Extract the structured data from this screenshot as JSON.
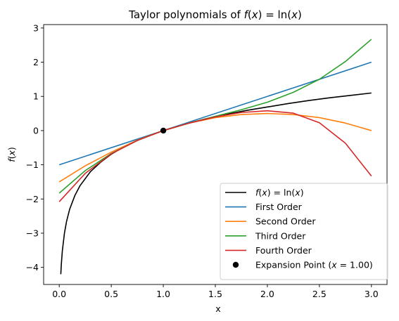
{
  "chart_data": {
    "type": "line",
    "title": "Taylor polynomials of f(x) = ln(x)",
    "xlabel": "x",
    "ylabel": "f(x)",
    "xlim": [
      -0.15,
      3.15
    ],
    "ylim": [
      -4.5,
      3.1
    ],
    "xticks": [
      0.0,
      0.5,
      1.0,
      1.5,
      2.0,
      2.5,
      3.0
    ],
    "xtick_labels": [
      "0.0",
      "0.5",
      "1.0",
      "1.5",
      "2.0",
      "2.5",
      "3.0"
    ],
    "yticks": [
      -4,
      -3,
      -2,
      -1,
      0,
      1,
      2,
      3
    ],
    "ytick_labels": [
      "−4",
      "−3",
      "−2",
      "−1",
      "0",
      "1",
      "2",
      "3"
    ],
    "legend_position": "lower right",
    "series": [
      {
        "name": "f(x) = ln(x)",
        "color": "#000000",
        "x": [
          0.015,
          0.02,
          0.03,
          0.05,
          0.07,
          0.1,
          0.15,
          0.2,
          0.3,
          0.4,
          0.5,
          0.6,
          0.7,
          0.8,
          0.9,
          1.0,
          1.2,
          1.4,
          1.6,
          1.8,
          2.0,
          2.2,
          2.4,
          2.6,
          2.8,
          3.0
        ],
        "y": [
          -4.2,
          -3.91,
          -3.51,
          -3.0,
          -2.66,
          -2.3,
          -1.9,
          -1.61,
          -1.2,
          -0.92,
          -0.69,
          -0.51,
          -0.36,
          -0.22,
          -0.11,
          0.0,
          0.18,
          0.34,
          0.47,
          0.59,
          0.69,
          0.79,
          0.88,
          0.96,
          1.03,
          1.1
        ]
      },
      {
        "name": "First Order",
        "color": "#1f77b4",
        "x": [
          0.0,
          3.0
        ],
        "y": [
          -1.0,
          2.0
        ]
      },
      {
        "name": "Second Order",
        "color": "#ff7f0e",
        "x": [
          0.0,
          0.25,
          0.5,
          0.75,
          1.0,
          1.25,
          1.5,
          1.75,
          2.0,
          2.25,
          2.5,
          2.75,
          3.0
        ],
        "y": [
          -1.5,
          -1.03,
          -0.63,
          -0.28,
          0.0,
          0.22,
          0.38,
          0.47,
          0.5,
          0.47,
          0.38,
          0.22,
          0.0
        ]
      },
      {
        "name": "Third Order",
        "color": "#2ca02c",
        "x": [
          0.0,
          0.25,
          0.5,
          0.75,
          1.0,
          1.25,
          1.5,
          1.75,
          2.0,
          2.25,
          2.5,
          2.75,
          3.0
        ],
        "y": [
          -1.83,
          -1.17,
          -0.67,
          -0.29,
          0.0,
          0.22,
          0.42,
          0.61,
          0.83,
          1.12,
          1.5,
          2.02,
          2.67
        ]
      },
      {
        "name": "Fourth Order",
        "color": "#d62728",
        "x": [
          0.0,
          0.25,
          0.5,
          0.75,
          1.0,
          1.25,
          1.5,
          1.75,
          2.0,
          2.25,
          2.5,
          2.75,
          3.0
        ],
        "y": [
          -2.08,
          -1.25,
          -0.68,
          -0.29,
          0.0,
          0.22,
          0.4,
          0.53,
          0.58,
          0.51,
          0.23,
          -0.37,
          -1.33
        ]
      }
    ],
    "points": [
      {
        "name": "Expansion Point (x = 1.00)",
        "color": "#000000",
        "x": 1.0,
        "y": 0.0
      }
    ]
  }
}
